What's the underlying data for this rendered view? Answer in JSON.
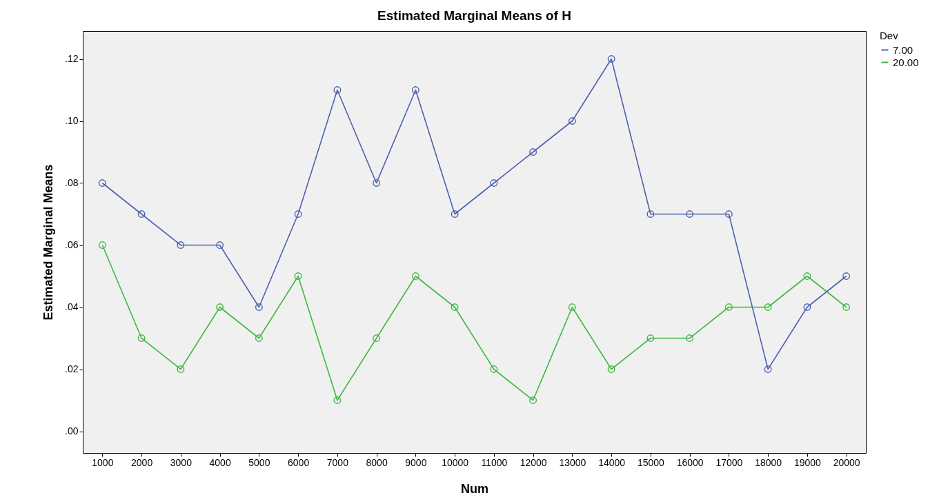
{
  "chart_data": {
    "type": "line",
    "title": "Estimated Marginal Means of H",
    "xlabel": "Num",
    "ylabel": "Estimated Marginal Means",
    "legend_title": "Dev",
    "categories": [
      "1000",
      "2000",
      "3000",
      "4000",
      "5000",
      "6000",
      "7000",
      "8000",
      "9000",
      "10000",
      "11000",
      "12000",
      "13000",
      "14000",
      "15000",
      "16000",
      "17000",
      "18000",
      "19000",
      "20000"
    ],
    "series": [
      {
        "name": "7.00",
        "color": "#4e5fb0",
        "values": [
          0.08,
          0.07,
          0.06,
          0.06,
          0.04,
          0.07,
          0.11,
          0.08,
          0.11,
          0.07,
          0.08,
          0.09,
          0.1,
          0.12,
          0.07,
          0.07,
          0.07,
          0.02,
          0.04,
          0.05
        ]
      },
      {
        "name": "20.00",
        "color": "#3fb83f",
        "values": [
          0.06,
          0.03,
          0.02,
          0.04,
          0.03,
          0.05,
          0.01,
          0.03,
          0.05,
          0.04,
          0.02,
          0.01,
          0.04,
          0.02,
          0.03,
          0.03,
          0.04,
          0.04,
          0.05,
          0.04
        ]
      }
    ],
    "ylim": [
      -0.007,
      0.129
    ],
    "yticks": [
      {
        "value": 0,
        "label": ".00"
      },
      {
        "value": 0.02,
        "label": ".02"
      },
      {
        "value": 0.04,
        "label": ".04"
      },
      {
        "value": 0.06,
        "label": ".06"
      },
      {
        "value": 0.08,
        "label": ".08"
      },
      {
        "value": 0.1,
        "label": ".10"
      },
      {
        "value": 0.12,
        "label": ".12"
      }
    ],
    "grid": false,
    "legend": "top right",
    "marker": "circle",
    "line_style": "solid"
  }
}
